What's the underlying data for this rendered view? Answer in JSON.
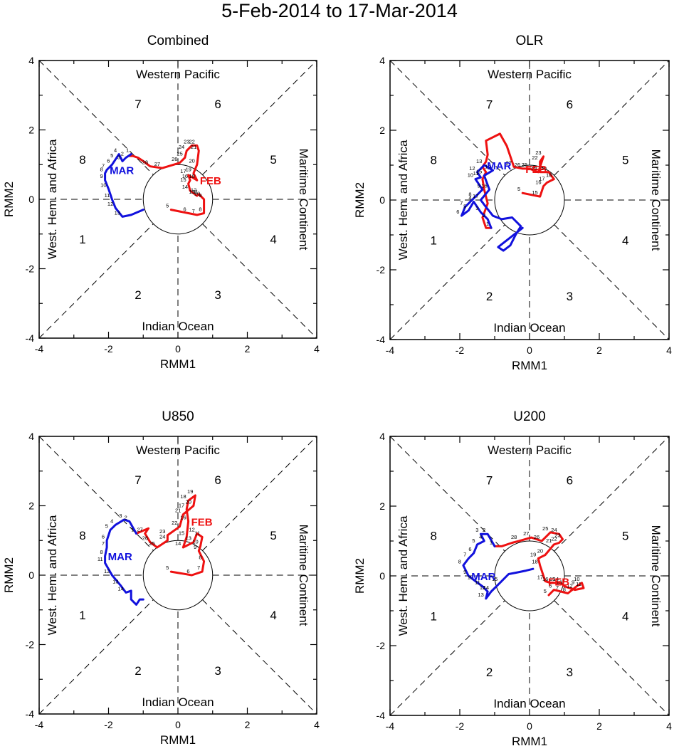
{
  "title": "5-Feb-2014 to 17-Mar-2014",
  "colors": {
    "feb": "#ee1111",
    "mar": "#1111dd",
    "axis": "#000000"
  },
  "common": {
    "xlabel": "RMM1",
    "ylabel": "RMM2",
    "xlim": [
      -4,
      4
    ],
    "ylim": [
      -4,
      4
    ],
    "ticks": [
      "-4",
      "-2",
      "0",
      "2",
      "4"
    ],
    "regions": {
      "top": "Western Pacific",
      "bottom": "Indian Ocean",
      "left": "West. Hem. and Africa",
      "right": "Maritime Continent"
    },
    "phases": [
      "1",
      "2",
      "3",
      "4",
      "5",
      "6",
      "7",
      "8"
    ],
    "month_labels": {
      "feb": "FEB",
      "mar": "MAR"
    }
  },
  "chart_data": [
    {
      "type": "line",
      "title": "Combined",
      "series": [
        {
          "name": "FEB",
          "points": [
            [
              -0.2,
              -0.3
            ],
            [
              0.3,
              -0.4
            ],
            [
              0.55,
              -0.45
            ],
            [
              0.75,
              -0.4
            ],
            [
              0.75,
              0.0
            ],
            [
              0.7,
              0.05
            ],
            [
              0.65,
              0.1
            ],
            [
              0.6,
              0.15
            ],
            [
              0.55,
              0.1
            ],
            [
              0.35,
              0.25
            ],
            [
              0.3,
              0.45
            ],
            [
              0.35,
              0.55
            ],
            [
              0.3,
              0.7
            ],
            [
              0.55,
              0.55
            ],
            [
              0.45,
              0.75
            ],
            [
              0.55,
              1.0
            ],
            [
              0.6,
              1.4
            ],
            [
              0.55,
              1.55
            ],
            [
              0.4,
              1.55
            ],
            [
              0.25,
              1.4
            ],
            [
              0.2,
              1.2
            ],
            [
              0.05,
              1.05
            ],
            [
              -0.45,
              0.9
            ],
            [
              -0.8,
              0.95
            ],
            [
              -1.0,
              1.1
            ],
            [
              -1.15,
              1.2
            ],
            [
              -1.3,
              1.25
            ],
            [
              -1.4,
              1.25
            ],
            [
              -1.35,
              1.3
            ]
          ],
          "labels": [
            "5",
            "6",
            "7",
            "8",
            "9",
            "10",
            "11",
            "12",
            "13",
            "14",
            "15",
            "16",
            "17",
            "18",
            "19",
            "20",
            "21",
            "22",
            "23",
            "24",
            "25",
            "26",
            "27",
            "28"
          ]
        },
        {
          "name": "MAR",
          "points": [
            [
              -1.35,
              1.3
            ],
            [
              -1.5,
              1.2
            ],
            [
              -1.6,
              1.1
            ],
            [
              -1.7,
              1.3
            ],
            [
              -1.8,
              1.15
            ],
            [
              -1.9,
              1.0
            ],
            [
              -2.05,
              0.85
            ],
            [
              -2.1,
              0.75
            ],
            [
              -2.1,
              0.55
            ],
            [
              -2.0,
              0.3
            ],
            [
              -1.9,
              0.0
            ],
            [
              -1.8,
              -0.25
            ],
            [
              -1.6,
              -0.5
            ],
            [
              -1.35,
              -0.45
            ],
            [
              -1.0,
              -0.3
            ]
          ],
          "labels": [
            "1",
            "2",
            "3",
            "4",
            "5",
            "6",
            "7",
            "8",
            "9",
            "10",
            "11",
            "12",
            "13"
          ]
        }
      ]
    },
    {
      "type": "line",
      "title": "OLR",
      "series": [
        {
          "name": "FEB",
          "points": [
            [
              -0.2,
              0.2
            ],
            [
              0.3,
              0.1
            ],
            [
              0.4,
              0.4
            ],
            [
              0.5,
              0.5
            ],
            [
              0.7,
              0.6
            ],
            [
              0.55,
              0.8
            ],
            [
              0.3,
              0.8
            ],
            [
              0.3,
              1.1
            ],
            [
              0.4,
              1.25
            ],
            [
              0.25,
              0.8
            ],
            [
              0.0,
              0.9
            ],
            [
              -0.2,
              0.9
            ],
            [
              -0.45,
              0.95
            ],
            [
              -0.65,
              1.55
            ],
            [
              -0.85,
              1.9
            ],
            [
              -1.25,
              1.7
            ],
            [
              -1.2,
              1.3
            ],
            [
              -1.25,
              1.1
            ],
            [
              -1.35,
              0.95
            ],
            [
              -1.25,
              0.8
            ],
            [
              -1.35,
              0.6
            ],
            [
              -1.3,
              0.3
            ],
            [
              -1.2,
              -0.1
            ],
            [
              -1.35,
              -0.5
            ],
            [
              -1.25,
              -0.8
            ],
            [
              -1.1,
              -0.8
            ]
          ],
          "labels": [
            "5",
            "15",
            "16",
            "17",
            "18",
            "20",
            "21",
            "22",
            "23",
            "24",
            "25",
            "26",
            "27"
          ]
        },
        {
          "name": "MAR",
          "points": [
            [
              -1.1,
              -0.8
            ],
            [
              -1.2,
              -0.55
            ],
            [
              -1.4,
              -0.35
            ],
            [
              -1.6,
              -0.05
            ],
            [
              -1.75,
              -0.3
            ],
            [
              -1.95,
              -0.45
            ],
            [
              -1.85,
              -0.2
            ],
            [
              -1.6,
              0.05
            ],
            [
              -1.35,
              0.3
            ],
            [
              -1.55,
              0.6
            ],
            [
              -1.4,
              0.65
            ],
            [
              -1.5,
              0.8
            ],
            [
              -1.3,
              1.0
            ],
            [
              -1.05,
              0.85
            ],
            [
              -1.3,
              0.7
            ],
            [
              -1.15,
              0.3
            ],
            [
              -1.4,
              0.0
            ],
            [
              -1.25,
              -0.2
            ],
            [
              -1.05,
              -0.45
            ],
            [
              -0.8,
              -0.55
            ],
            [
              -0.5,
              -0.5
            ],
            [
              -0.25,
              -0.75
            ],
            [
              -0.4,
              -1.0
            ],
            [
              -0.55,
              -1.3
            ],
            [
              -0.75,
              -1.45
            ],
            [
              -0.9,
              -1.35
            ],
            [
              -0.2,
              -0.8
            ]
          ],
          "labels": [
            "1",
            "2",
            "3",
            "4",
            "5",
            "6",
            "7",
            "8",
            "9",
            "10",
            "11",
            "12",
            "13",
            "14",
            "15",
            "16",
            "17"
          ]
        }
      ]
    },
    {
      "type": "line",
      "title": "U850",
      "series": [
        {
          "name": "FEB",
          "points": [
            [
              -0.2,
              0.1
            ],
            [
              0.4,
              0.0
            ],
            [
              0.7,
              0.1
            ],
            [
              0.75,
              0.4
            ],
            [
              0.6,
              0.7
            ],
            [
              0.65,
              0.85
            ],
            [
              0.7,
              1.1
            ],
            [
              0.55,
              1.2
            ],
            [
              0.45,
              0.95
            ],
            [
              0.15,
              0.8
            ],
            [
              0.25,
              1.1
            ],
            [
              0.3,
              1.55
            ],
            [
              0.25,
              1.9
            ],
            [
              0.3,
              2.15
            ],
            [
              0.5,
              2.3
            ],
            [
              0.45,
              2.0
            ],
            [
              0.15,
              1.75
            ],
            [
              0.05,
              1.4
            ],
            [
              -0.3,
              1.15
            ],
            [
              -0.3,
              1.0
            ],
            [
              -0.6,
              0.8
            ],
            [
              -0.8,
              0.95
            ],
            [
              -0.95,
              1.2
            ],
            [
              -0.85,
              1.35
            ],
            [
              -1.2,
              1.2
            ]
          ],
          "labels": [
            "5",
            "6",
            "7",
            "8",
            "9",
            "10",
            "11",
            "12",
            "13",
            "14",
            "15",
            "16",
            "17",
            "18",
            "19",
            "20",
            "21",
            "22",
            "23",
            "24",
            "25",
            "26",
            "27"
          ]
        },
        {
          "name": "MAR",
          "points": [
            [
              -1.2,
              1.2
            ],
            [
              -1.4,
              1.55
            ],
            [
              -1.55,
              1.6
            ],
            [
              -1.8,
              1.45
            ],
            [
              -1.95,
              1.3
            ],
            [
              -2.05,
              1.0
            ],
            [
              -2.05,
              0.8
            ],
            [
              -2.1,
              0.55
            ],
            [
              -2.1,
              0.35
            ],
            [
              -1.9,
              0.0
            ],
            [
              -1.65,
              -0.3
            ],
            [
              -1.5,
              -0.5
            ],
            [
              -1.35,
              -0.45
            ],
            [
              -1.35,
              -0.7
            ],
            [
              -1.2,
              -0.85
            ],
            [
              -1.1,
              -0.7
            ],
            [
              -1.0,
              -0.7
            ]
          ],
          "labels": [
            "1",
            "2",
            "3",
            "4",
            "5",
            "6",
            "7",
            "8",
            "11",
            "12",
            "13",
            "14"
          ]
        }
      ]
    },
    {
      "type": "line",
      "title": "U200",
      "series": [
        {
          "name": "FEB",
          "points": [
            [
              0.55,
              -0.55
            ],
            [
              0.7,
              -0.4
            ],
            [
              0.9,
              -0.45
            ],
            [
              1.1,
              -0.5
            ],
            [
              1.35,
              -0.3
            ],
            [
              1.5,
              -0.2
            ],
            [
              1.55,
              -0.35
            ],
            [
              1.3,
              -0.4
            ],
            [
              1.0,
              -0.3
            ],
            [
              0.9,
              -0.2
            ],
            [
              0.8,
              -0.2
            ],
            [
              0.6,
              -0.2
            ],
            [
              0.45,
              -0.15
            ],
            [
              0.3,
              0.3
            ],
            [
              0.25,
              0.5
            ],
            [
              0.45,
              0.6
            ],
            [
              0.7,
              0.9
            ],
            [
              0.85,
              0.95
            ],
            [
              0.95,
              1.05
            ],
            [
              0.85,
              1.2
            ],
            [
              0.6,
              1.25
            ],
            [
              0.35,
              1.0
            ],
            [
              0.05,
              1.1
            ],
            [
              -0.3,
              1.0
            ],
            [
              -0.5,
              0.95
            ],
            [
              -0.8,
              0.85
            ],
            [
              -1.0,
              0.85
            ]
          ],
          "labels": [
            "5",
            "6",
            "7",
            "8",
            "9",
            "10",
            "11",
            "12",
            "13",
            "14",
            "15",
            "16",
            "17",
            "18",
            "19",
            "20",
            "21",
            "22",
            "23",
            "24",
            "25",
            "26",
            "27",
            "28"
          ]
        },
        {
          "name": "MAR",
          "points": [
            [
              -1.0,
              0.85
            ],
            [
              -1.2,
              1.2
            ],
            [
              -1.4,
              1.2
            ],
            [
              -1.3,
              1.0
            ],
            [
              -1.5,
              0.9
            ],
            [
              -1.6,
              0.65
            ],
            [
              -1.75,
              0.5
            ],
            [
              -1.9,
              0.3
            ],
            [
              -1.75,
              0.0
            ],
            [
              -1.55,
              -0.15
            ],
            [
              -1.35,
              -0.3
            ],
            [
              -1.2,
              -0.45
            ],
            [
              -1.25,
              -0.65
            ],
            [
              -1.1,
              -0.45
            ],
            [
              -0.85,
              -0.2
            ],
            [
              -0.6,
              0.05
            ],
            [
              -0.35,
              0.1
            ],
            [
              -0.1,
              0.15
            ],
            [
              0.1,
              0.2
            ]
          ],
          "labels": [
            "1",
            "2",
            "3",
            "4",
            "5",
            "6",
            "7",
            "8",
            "9",
            "10",
            "11",
            "12",
            "13",
            "14",
            "15"
          ]
        }
      ]
    }
  ]
}
